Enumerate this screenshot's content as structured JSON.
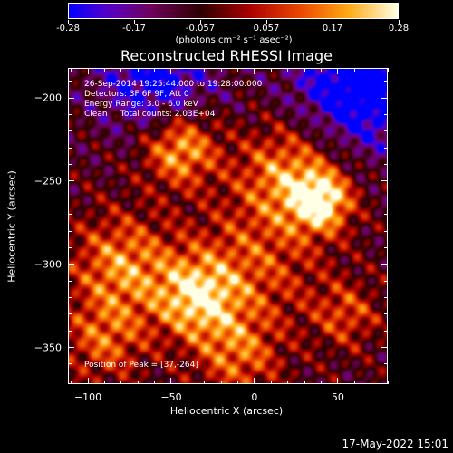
{
  "colorbar": {
    "labels": [
      "-0.28",
      "-0.17",
      "-0.057",
      "0.057",
      "0.17",
      "0.28"
    ],
    "units": "(photons cm⁻² s⁻¹ asec⁻²)",
    "min": -0.28,
    "max": 0.28
  },
  "header": {
    "info_lines": [
      "26-Sep-2014 19:25:44.000 to 19:28:00.000",
      "Detectors: 3F 6F 9F, Att 0",
      "Energy Range: 3.0 - 6.0 keV",
      "Clean     Total counts: 2.03E+04"
    ],
    "peak": "Position of Peak = [37,-264]"
  },
  "chart_data": {
    "type": "heatmap",
    "title": "Reconstructed RHESSI Image",
    "xlabel": "Heliocentric X (arcsec)",
    "ylabel": "Heliocentric Y (arcsec)",
    "xlim": [
      -112,
      80
    ],
    "ylim": [
      -372,
      -182
    ],
    "xticks": [
      -100,
      -50,
      0,
      50
    ],
    "yticks": [
      -200,
      -250,
      -300,
      -350
    ],
    "xtick_labels": [
      "−100",
      "−50",
      "0",
      "50"
    ],
    "ytick_labels": [
      "−200",
      "−250",
      "−300",
      "−350"
    ],
    "colorscale": "red-temperature",
    "peak_position": [
      37,
      -264
    ]
  },
  "footer": {
    "timestamp": "17-May-2022 15:01"
  }
}
